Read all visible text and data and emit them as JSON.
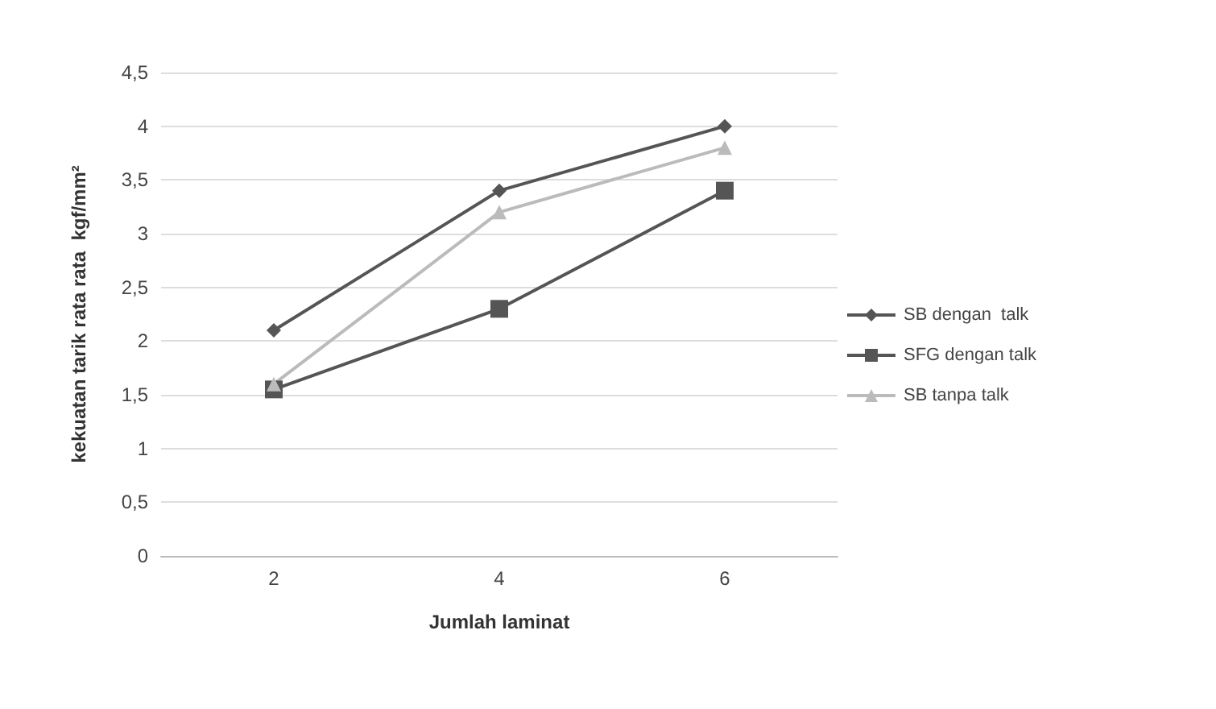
{
  "chart_data": {
    "type": "line",
    "xlabel": "Jumlah laminat",
    "ylabel": "kekuatan tarik rata rata  kgf/mm²",
    "categories": [
      "2",
      "4",
      "6"
    ],
    "series": [
      {
        "name": "SB dengan  talk",
        "color": "#555555",
        "marker": "diamond",
        "values": [
          2.1,
          3.4,
          4.0
        ]
      },
      {
        "name": "SFG dengan talk",
        "color": "#555555",
        "marker": "square",
        "values": [
          1.55,
          2.3,
          3.4
        ]
      },
      {
        "name": "SB tanpa talk",
        "color": "#bbbbbb",
        "marker": "triangle",
        "values": [
          1.6,
          3.2,
          3.8
        ]
      }
    ],
    "ylim": [
      0,
      4.5
    ],
    "yticks": [
      0,
      {
        "value": 0.5,
        "label": "0,5"
      },
      1,
      {
        "value": 1.5,
        "label": "1,5"
      },
      2,
      {
        "value": 2.5,
        "label": "2,5"
      },
      3,
      {
        "value": 3.5,
        "label": "3,5"
      },
      4,
      {
        "value": 4.5,
        "label": "4,5"
      }
    ],
    "grid": "y",
    "legend": "right",
    "line_style": "solid"
  }
}
